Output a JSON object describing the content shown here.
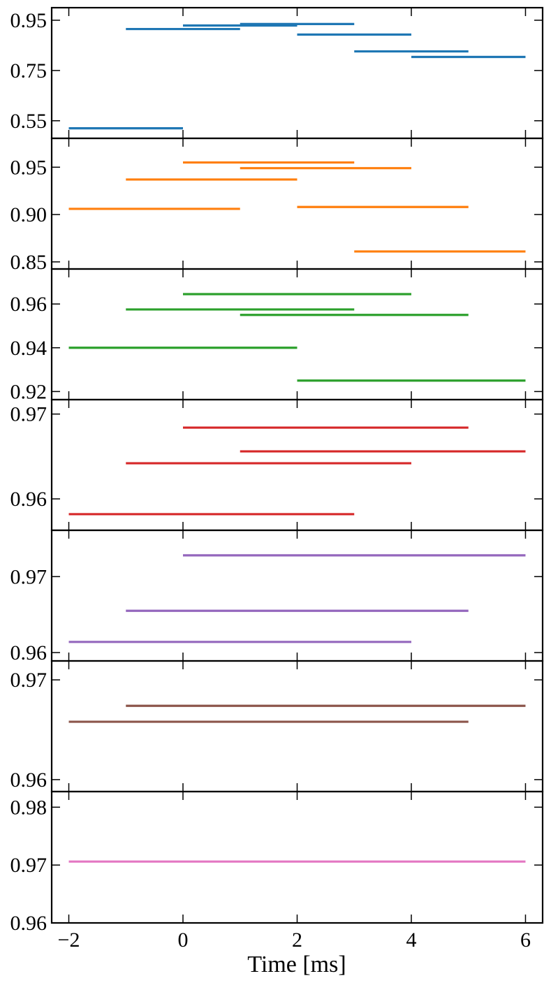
{
  "chart_data": {
    "type": "line",
    "xlabel": "Time [ms]",
    "xlim": [
      -2.3,
      6.3
    ],
    "x_ticks": [
      -2,
      0,
      2,
      4,
      6
    ],
    "x_tick_labels": [
      "−2",
      "0",
      "2",
      "4",
      "6"
    ],
    "panels": [
      {
        "color": "#1f77b4",
        "ylim": [
          0.48,
          1.0
        ],
        "y_ticks": [
          0.55,
          0.75,
          0.95
        ],
        "y_tick_labels": [
          "0.55",
          "0.75",
          "0.95"
        ],
        "segments": [
          {
            "x0": -2,
            "x1": 0,
            "y": 0.52
          },
          {
            "x0": -1,
            "x1": 1,
            "y": 0.915
          },
          {
            "x0": 0,
            "x1": 2,
            "y": 0.929
          },
          {
            "x0": 1,
            "x1": 3,
            "y": 0.935
          },
          {
            "x0": 2,
            "x1": 4,
            "y": 0.893
          },
          {
            "x0": 3,
            "x1": 5,
            "y": 0.826
          },
          {
            "x0": 4,
            "x1": 6,
            "y": 0.804
          }
        ]
      },
      {
        "color": "#ff7f0e",
        "ylim": [
          0.8425,
          0.9805
        ],
        "y_ticks": [
          0.85,
          0.9,
          0.95
        ],
        "y_tick_labels": [
          "0.85",
          "0.90",
          "0.95"
        ],
        "segments": [
          {
            "x0": -2,
            "x1": 1,
            "y": 0.906
          },
          {
            "x0": -1,
            "x1": 2,
            "y": 0.937
          },
          {
            "x0": 0,
            "x1": 3,
            "y": 0.955
          },
          {
            "x0": 1,
            "x1": 4,
            "y": 0.949
          },
          {
            "x0": 2,
            "x1": 5,
            "y": 0.908
          },
          {
            "x0": 3,
            "x1": 6,
            "y": 0.861
          }
        ]
      },
      {
        "color": "#2ca02c",
        "ylim": [
          0.9163,
          0.976
        ],
        "y_ticks": [
          0.92,
          0.94,
          0.96
        ],
        "y_tick_labels": [
          "0.92",
          "0.94",
          "0.96"
        ],
        "segments": [
          {
            "x0": -2,
            "x1": 2,
            "y": 0.94
          },
          {
            "x0": -1,
            "x1": 3,
            "y": 0.9575
          },
          {
            "x0": 0,
            "x1": 4,
            "y": 0.9645
          },
          {
            "x0": 1,
            "x1": 5,
            "y": 0.955
          },
          {
            "x0": 2,
            "x1": 6,
            "y": 0.925
          }
        ]
      },
      {
        "color": "#d62728",
        "ylim": [
          0.9563,
          0.9717
        ],
        "y_ticks": [
          0.96,
          0.97
        ],
        "y_tick_labels": [
          "0.96",
          "0.97"
        ],
        "segments": [
          {
            "x0": -2,
            "x1": 3,
            "y": 0.9582
          },
          {
            "x0": -1,
            "x1": 4,
            "y": 0.9642
          },
          {
            "x0": 0,
            "x1": 5,
            "y": 0.9684
          },
          {
            "x0": 1,
            "x1": 6,
            "y": 0.9656
          }
        ]
      },
      {
        "color": "#9467bd",
        "ylim": [
          0.9589,
          0.9761
        ],
        "y_ticks": [
          0.96,
          0.97
        ],
        "y_tick_labels": [
          "0.96",
          "0.97"
        ],
        "segments": [
          {
            "x0": -2,
            "x1": 4,
            "y": 0.9614
          },
          {
            "x0": -1,
            "x1": 5,
            "y": 0.9655
          },
          {
            "x0": 0,
            "x1": 6,
            "y": 0.9728
          }
        ]
      },
      {
        "color": "#8c564b",
        "ylim": [
          0.9588,
          0.9719
        ],
        "y_ticks": [
          0.96,
          0.97
        ],
        "y_tick_labels": [
          "0.96",
          "0.97"
        ],
        "segments": [
          {
            "x0": -2,
            "x1": 5,
            "y": 0.9658
          },
          {
            "x0": -1,
            "x1": 6,
            "y": 0.9674
          }
        ]
      },
      {
        "color": "#e377c2",
        "ylim": [
          0.96,
          0.9827
        ],
        "y_ticks": [
          0.96,
          0.97,
          0.98
        ],
        "y_tick_labels": [
          "0.96",
          "0.97",
          "0.98"
        ],
        "segments": [
          {
            "x0": -2,
            "x1": 6,
            "y": 0.9706
          }
        ]
      }
    ]
  }
}
